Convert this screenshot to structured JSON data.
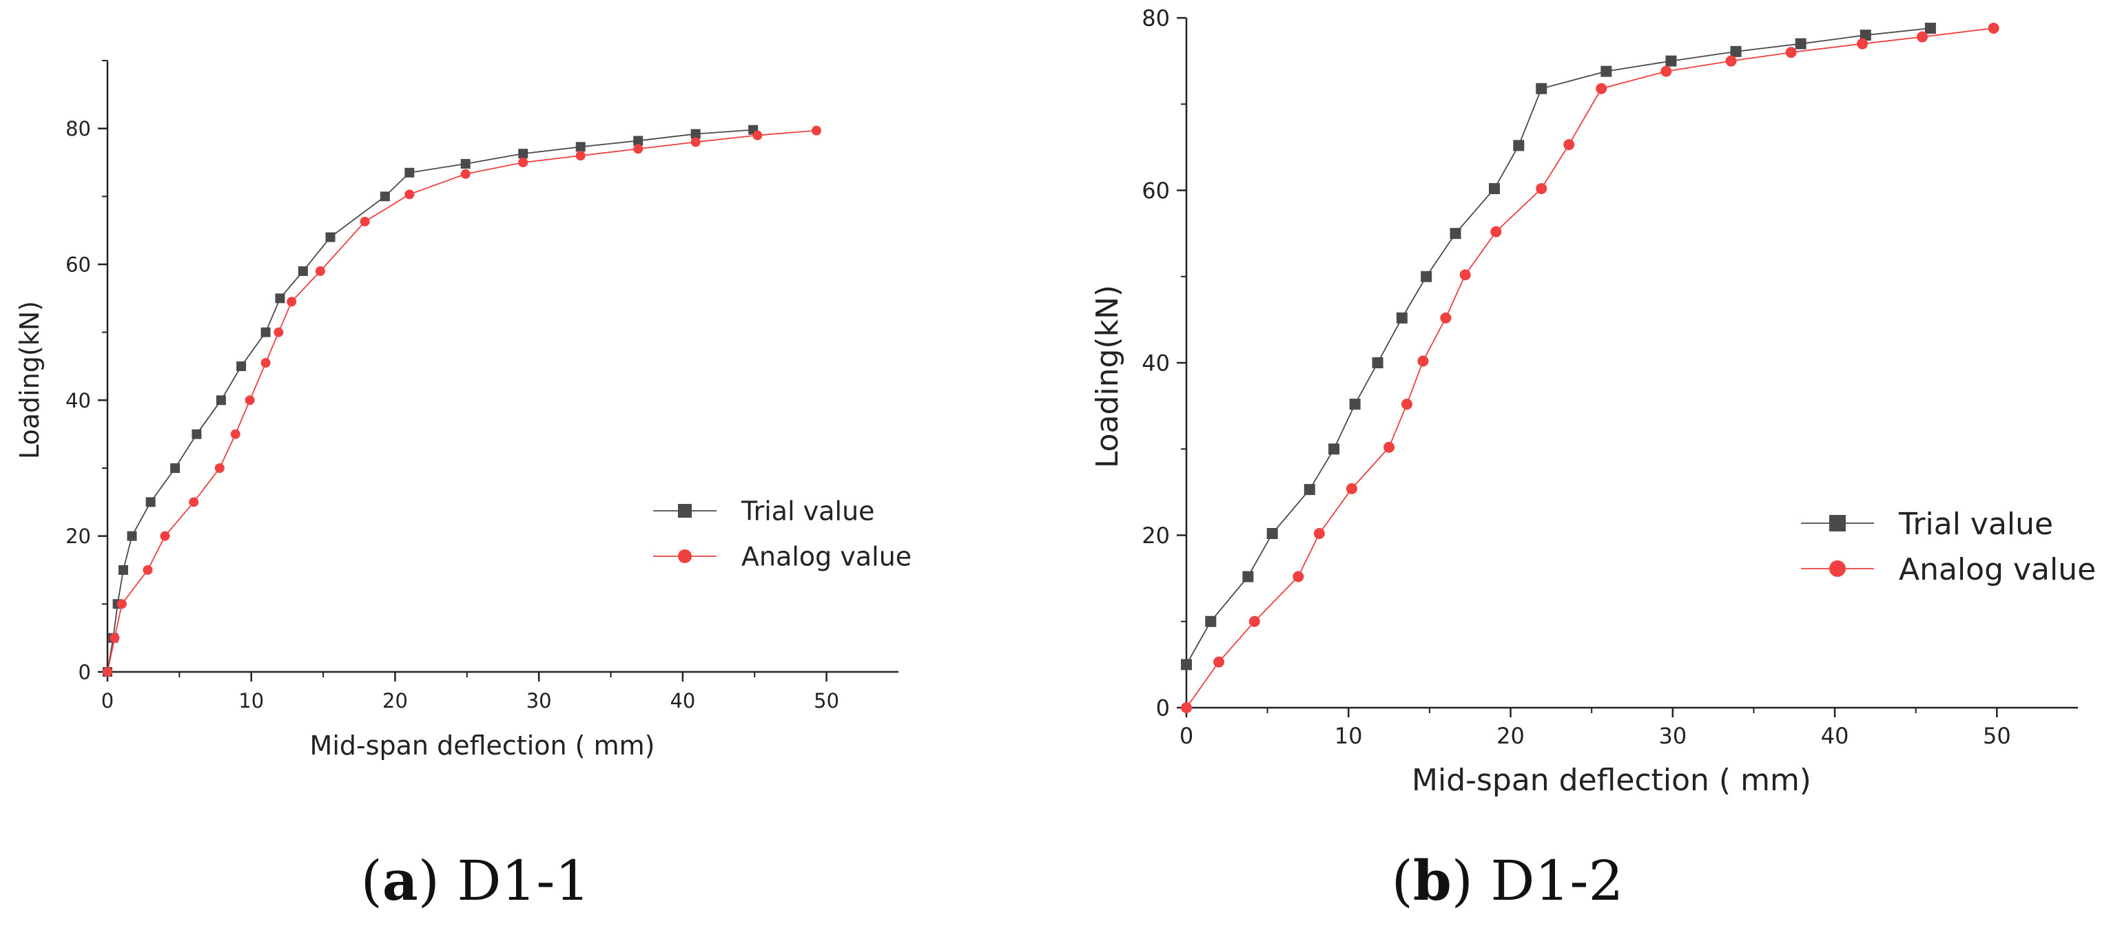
{
  "colors": {
    "trial": "#4a4a4a",
    "analog": "#f04040",
    "axis": "#222222"
  },
  "chart_data": [
    {
      "type": "line",
      "xlabel": "Mid-span deflection ( mm)",
      "ylabel": "Loading(kN)",
      "xlim": [
        0,
        55
      ],
      "ylim": [
        0,
        90
      ],
      "xticks": [
        0,
        10,
        20,
        30,
        40,
        50
      ],
      "yticks": [
        0,
        20,
        40,
        60,
        80
      ],
      "grid": false,
      "legend_position": "right-middle",
      "caption": {
        "open": "(",
        "letter": "a",
        "close": ")",
        "name": "D1-1"
      },
      "series": [
        {
          "name": "Trial value",
          "marker": "square",
          "x": [
            0,
            0.4,
            0.7,
            1.1,
            1.7,
            3.0,
            4.7,
            6.2,
            7.9,
            9.3,
            11.0,
            12.0,
            13.6,
            15.5,
            19.3,
            21.0,
            24.9,
            28.9,
            32.9,
            36.9,
            40.9,
            44.9
          ],
          "y": [
            0,
            5,
            10,
            15,
            20,
            25,
            30,
            35,
            40,
            45,
            50,
            55,
            59,
            64,
            70,
            73.5,
            74.8,
            76.3,
            77.3,
            78.2,
            79.2,
            79.8
          ]
        },
        {
          "name": "Analog value",
          "marker": "circle",
          "x": [
            0,
            0.5,
            1.0,
            2.8,
            4.0,
            6.0,
            7.8,
            8.9,
            9.9,
            11.0,
            11.9,
            12.8,
            14.8,
            17.9,
            21.0,
            24.9,
            28.9,
            32.9,
            36.9,
            40.9,
            45.2,
            49.3
          ],
          "y": [
            0,
            5,
            10,
            15,
            20,
            25,
            30,
            35,
            40,
            45.5,
            50,
            54.5,
            59,
            66.3,
            70.3,
            73.3,
            75,
            76,
            77,
            78,
            79,
            79.7
          ]
        }
      ]
    },
    {
      "type": "line",
      "xlabel": "Mid-span deflection ( mm)",
      "ylabel": "Loading(kN)",
      "xlim": [
        0,
        55
      ],
      "ylim": [
        0,
        80
      ],
      "xticks": [
        0,
        10,
        20,
        30,
        40,
        50
      ],
      "yticks": [
        0,
        20,
        40,
        60,
        80
      ],
      "grid": false,
      "legend_position": "right-middle",
      "caption": {
        "open": "(",
        "letter": "b",
        "close": ")",
        "name": "D1-2"
      },
      "series": [
        {
          "name": "Trial value",
          "marker": "square",
          "x": [
            0,
            1.5,
            3.8,
            5.3,
            7.6,
            9.1,
            10.4,
            11.8,
            13.3,
            14.8,
            16.6,
            19.0,
            20.5,
            21.9,
            25.9,
            29.9,
            33.9,
            37.9,
            41.9,
            45.9
          ],
          "y": [
            5,
            10,
            15.2,
            20.2,
            25.3,
            30,
            35.2,
            40,
            45.2,
            50,
            55,
            60.2,
            65.2,
            71.8,
            73.8,
            75,
            76.1,
            77,
            78,
            78.8
          ]
        },
        {
          "name": "Analog value",
          "marker": "circle",
          "x": [
            0,
            2.0,
            4.2,
            6.9,
            8.2,
            10.2,
            12.5,
            13.6,
            14.6,
            16.0,
            17.2,
            19.1,
            21.9,
            23.6,
            25.6,
            29.6,
            33.6,
            37.3,
            41.7,
            45.4,
            49.8
          ],
          "y": [
            0,
            5.3,
            10,
            15.2,
            20.2,
            25.4,
            30.2,
            35.2,
            40.2,
            45.2,
            50.2,
            55.2,
            60.2,
            65.3,
            71.8,
            73.8,
            75,
            76,
            77,
            77.8,
            78.8
          ]
        }
      ]
    }
  ]
}
